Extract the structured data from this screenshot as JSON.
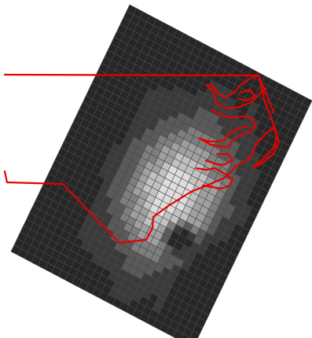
{
  "map": {
    "grid_rows": 38,
    "grid_cols": 27,
    "cell_palette": [
      "#262626",
      "#3a3a3a",
      "#5a5a5a",
      "#7e7e7e",
      "#a0a0a0",
      "#c2c2c2",
      "#dedede"
    ],
    "boundary_color": "#e60000",
    "background": "#ffffff"
  }
}
